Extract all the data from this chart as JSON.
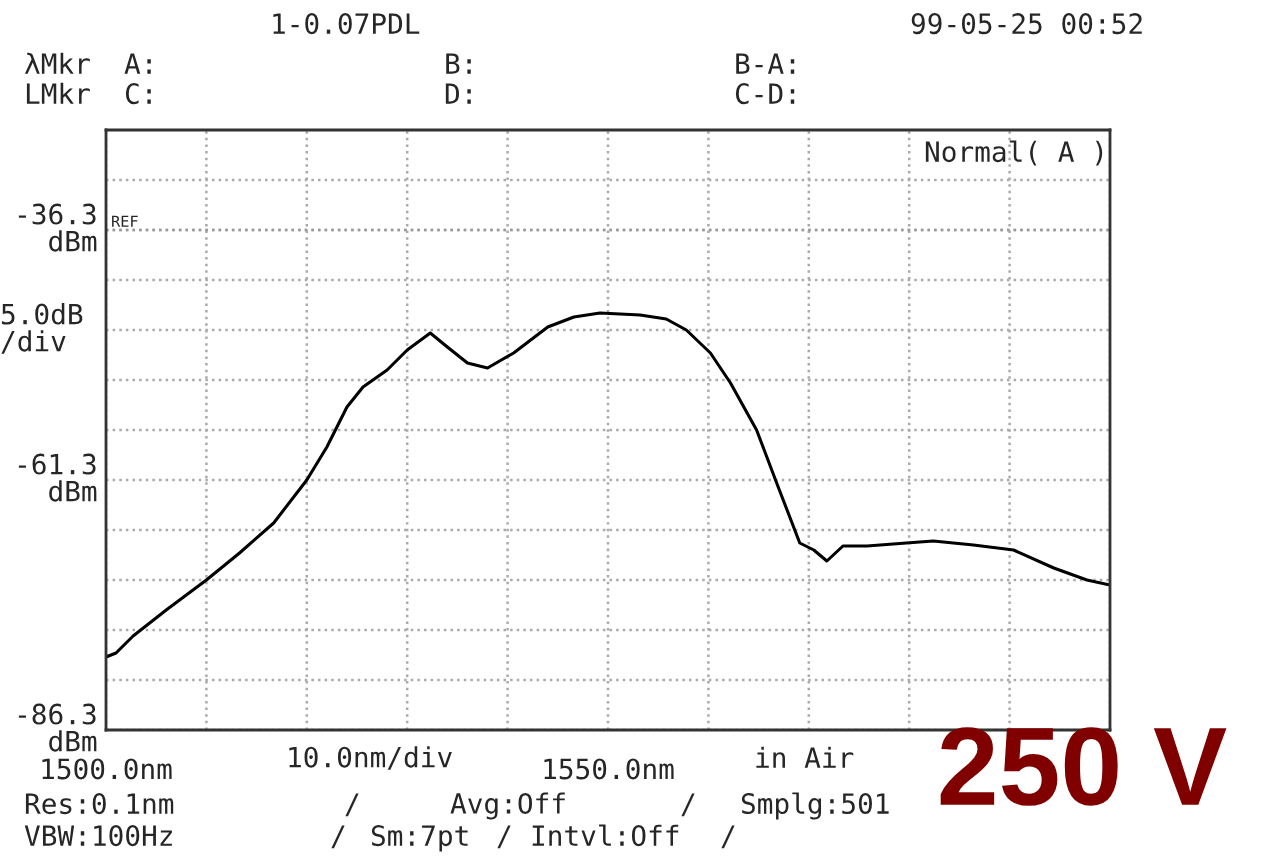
{
  "chart_data": {
    "type": "line",
    "title": "1-0.07PDL",
    "x": [
      1500,
      1501,
      1502.7,
      1506,
      1510,
      1513.3,
      1516.7,
      1520,
      1522,
      1524,
      1525.6,
      1528,
      1530,
      1532.3,
      1534,
      1536,
      1538,
      1540.6,
      1544,
      1546.6,
      1549.2,
      1553.2,
      1555.8,
      1557.8,
      1560.2,
      1562.2,
      1564.8,
      1566.8,
      1569.1,
      1570.5,
      1571.8,
      1573.4,
      1575.8,
      1579.7,
      1582.4,
      1586.4,
      1590.4,
      1594.4,
      1597.7,
      1600
    ],
    "series": [
      {
        "color": "#000000",
        "values": [
          -79.0,
          -78.6,
          -76.9,
          -74.3,
          -71.3,
          -68.6,
          -65.6,
          -61.3,
          -58.0,
          -54.0,
          -52.0,
          -50.3,
          -48.3,
          -46.6,
          -48.0,
          -49.6,
          -50.1,
          -48.6,
          -46.0,
          -45.0,
          -44.6,
          -44.8,
          -45.2,
          -46.3,
          -48.6,
          -51.6,
          -56.3,
          -61.6,
          -67.6,
          -68.3,
          -69.4,
          -67.9,
          -67.9,
          -67.6,
          -67.4,
          -67.8,
          -68.3,
          -70.1,
          -71.3,
          -71.8
        ]
      }
    ],
    "xlim": [
      1500,
      1600
    ],
    "xticks": [
      {
        "value": 1500,
        "label": "1500.0nm"
      },
      {
        "value": 1510,
        "label": null
      },
      {
        "value": 1520,
        "label": null
      },
      {
        "value": 1530,
        "label": null
      },
      {
        "value": 1540,
        "label": null
      },
      {
        "value": 1550,
        "label": "1550.0nm"
      },
      {
        "value": 1560,
        "label": null
      },
      {
        "value": 1570,
        "label": null
      },
      {
        "value": 1580,
        "label": null
      },
      {
        "value": 1590,
        "label": null
      },
      {
        "value": 1600,
        "label": null
      }
    ],
    "ylim": [
      -86.3,
      -26.3
    ],
    "yticks": [
      {
        "value": -86.3,
        "label": "-86.3\ndBm"
      },
      {
        "value": -81.3,
        "label": null
      },
      {
        "value": -76.3,
        "label": null
      },
      {
        "value": -71.3,
        "label": null
      },
      {
        "value": -66.3,
        "label": null
      },
      {
        "value": -61.3,
        "label": "-61.3\ndBm"
      },
      {
        "value": -56.3,
        "label": null
      },
      {
        "value": -51.3,
        "label": null
      },
      {
        "value": -46.3,
        "label": null
      },
      {
        "value": -41.3,
        "label": null
      },
      {
        "value": -36.3,
        "label": "-36.3\ndBm"
      },
      {
        "value": -31.3,
        "label": null
      }
    ],
    "ref_lines": [
      {
        "axis": "y",
        "value": -36.3,
        "label": "REF",
        "color": "#999999",
        "line_style": "dotted"
      }
    ],
    "grid": true,
    "marker": "none",
    "line_style": "solid",
    "ylabel": "5.0dB\n/div",
    "xlabel": "10.0nm/div",
    "annotations": [
      "99-05-25 00:52",
      "λMkr",
      "A:",
      "B:",
      "B-A:",
      "LMkr",
      "C:",
      "D:",
      "C-D:",
      "Normal( A )",
      "in Air",
      "Res:0.1nm",
      "/",
      "Avg:Off",
      "/",
      "Smplg:501",
      "VBW:100Hz",
      "/",
      "Sm:7pt",
      "/",
      "Intvl:Off",
      "/",
      "250 V"
    ]
  }
}
